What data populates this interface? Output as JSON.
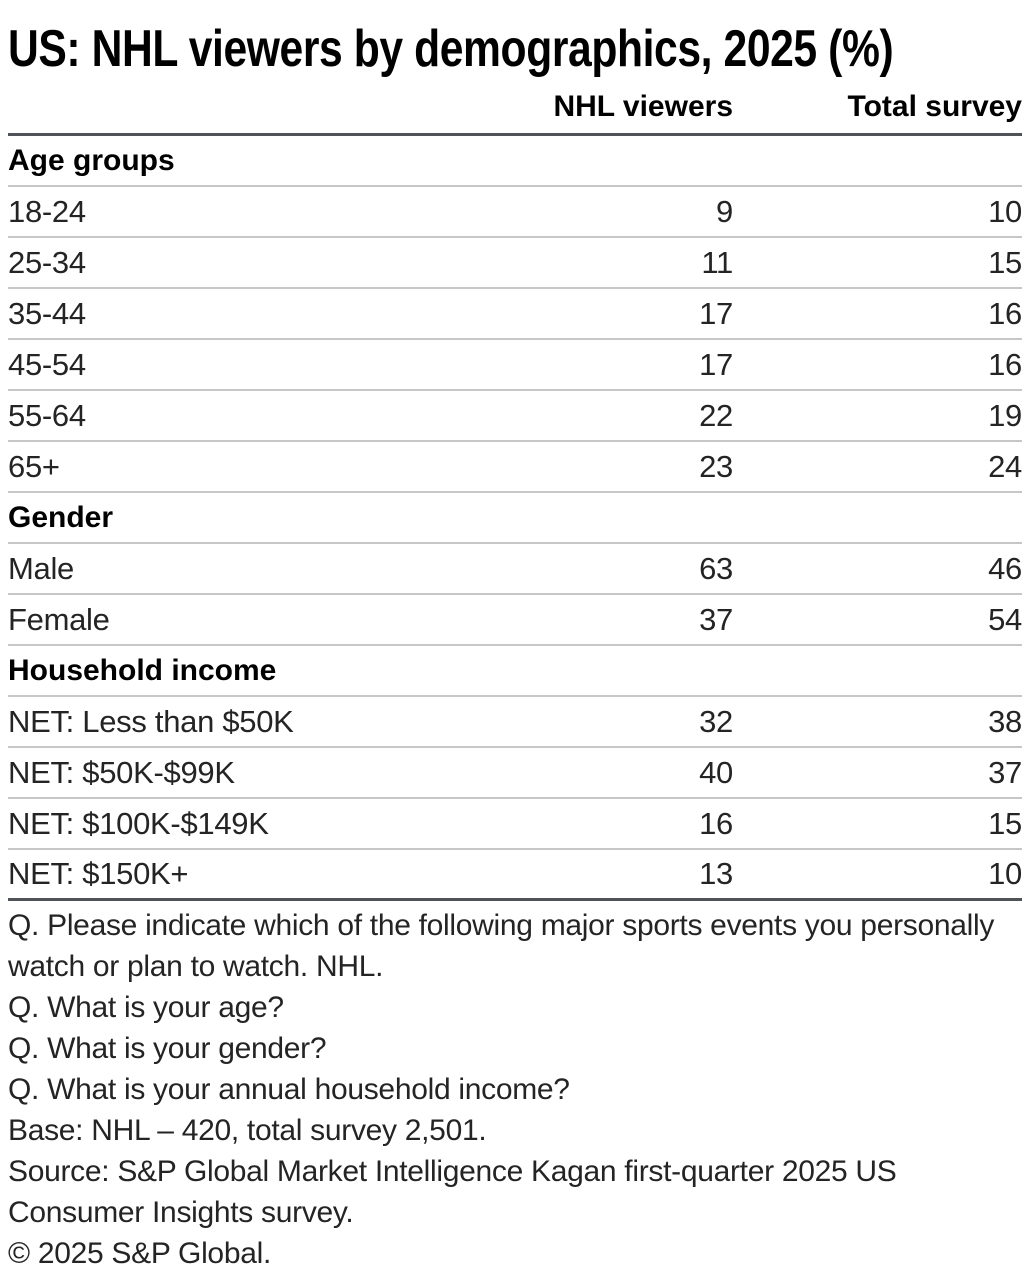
{
  "page": {
    "title": "US: NHL viewers by demographics, 2025 (%)"
  },
  "table": {
    "col_nhl": "NHL viewers",
    "col_total": "Total survey",
    "rows": [
      {
        "label": "Age groups",
        "section": true,
        "nhl": "",
        "total": ""
      },
      {
        "label": "18-24",
        "nhl": "9",
        "total": "10"
      },
      {
        "label": "25-34",
        "nhl": "11",
        "total": "15"
      },
      {
        "label": "35-44",
        "nhl": "17",
        "total": "16"
      },
      {
        "label": "45-54",
        "nhl": "17",
        "total": "16"
      },
      {
        "label": "55-64",
        "nhl": "22",
        "total": "19"
      },
      {
        "label": "65+",
        "nhl": "23",
        "total": "24"
      },
      {
        "label": "Gender",
        "section": true,
        "nhl": "",
        "total": ""
      },
      {
        "label": "Male",
        "nhl": "63",
        "total": "46"
      },
      {
        "label": "Female",
        "nhl": "37",
        "total": "54"
      },
      {
        "label": "Household income",
        "section": true,
        "nhl": "",
        "total": ""
      },
      {
        "label": "NET: Less than $50K",
        "nhl": "32",
        "total": "38"
      },
      {
        "label": "NET: $50K-$99K",
        "nhl": "40",
        "total": "37"
      },
      {
        "label": "NET: $100K-$149K",
        "nhl": "16",
        "total": "15"
      },
      {
        "label": "NET: $150K+",
        "nhl": "13",
        "total": "10"
      }
    ]
  },
  "footnotes": {
    "q1": "Q. Please indicate which of the following major sports events you personally watch or plan to watch. NHL.",
    "q2": "Q. What is your age?",
    "q3": "Q. What is your gender?",
    "q4": "Q. What is your annual household income?",
    "base": "Base: NHL – 420, total survey 2,501.",
    "source": "Source: S&P Global Market Intelligence Kagan first-quarter 2025 US Consumer Insights survey.",
    "copyright": "© 2025 S&P Global."
  },
  "colors": {
    "rule_dark": "#4f5357",
    "rule_light": "#c7c7c7",
    "text": "#242424",
    "heading": "#000000",
    "background": "#ffffff"
  },
  "chart_data": {
    "type": "table",
    "title": "US: NHL viewers by demographics, 2025 (%)",
    "columns": [
      "NHL viewers",
      "Total survey"
    ],
    "sections": [
      {
        "name": "Age groups",
        "categories": [
          "18-24",
          "25-34",
          "35-44",
          "45-54",
          "55-64",
          "65+"
        ],
        "series": [
          {
            "name": "NHL viewers",
            "values": [
              9,
              11,
              17,
              17,
              22,
              23
            ]
          },
          {
            "name": "Total survey",
            "values": [
              10,
              15,
              16,
              16,
              19,
              24
            ]
          }
        ]
      },
      {
        "name": "Gender",
        "categories": [
          "Male",
          "Female"
        ],
        "series": [
          {
            "name": "NHL viewers",
            "values": [
              63,
              37
            ]
          },
          {
            "name": "Total survey",
            "values": [
              46,
              54
            ]
          }
        ]
      },
      {
        "name": "Household income",
        "categories": [
          "NET: Less than $50K",
          "NET: $50K-$99K",
          "NET: $100K-$149K",
          "NET: $150K+"
        ],
        "series": [
          {
            "name": "NHL viewers",
            "values": [
              32,
              40,
              16,
              13
            ]
          },
          {
            "name": "Total survey",
            "values": [
              38,
              37,
              15,
              10
            ]
          }
        ]
      }
    ],
    "base_note": "Base: NHL – 420, total survey 2,501.",
    "source_note": "Source: S&P Global Market Intelligence Kagan first-quarter 2025 US Consumer Insights survey.",
    "units": "percent"
  }
}
